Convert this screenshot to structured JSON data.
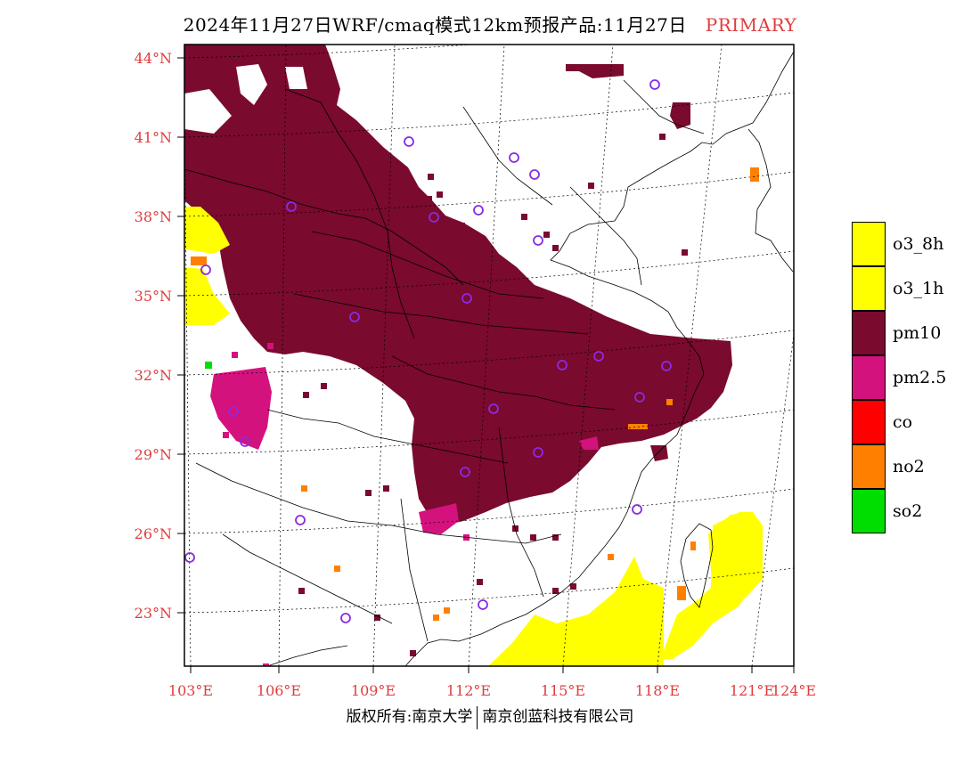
{
  "header": {
    "title": "2024年11月27日WRF/cmaq模式12km预报产品:11月27日",
    "tag": "PRIMARY"
  },
  "map": {
    "lat_labels": [
      "44°N",
      "41°N",
      "38°N",
      "35°N",
      "32°N",
      "29°N",
      "26°N",
      "23°N"
    ],
    "lon_labels": [
      "103°E",
      "106°E",
      "109°E",
      "112°E",
      "115°E",
      "118°E",
      "121°E",
      "124°E"
    ],
    "colors": {
      "pm10": "#7a0a2e",
      "pm25": "#d4127e",
      "o3": "#ffff00",
      "no2": "#ff8000",
      "so2": "#00dd00",
      "co": "#ff0000",
      "grid_label": "#e03c3c",
      "station": "#8a2be2"
    }
  },
  "legend": [
    {
      "label": "o3_8h",
      "color": "#ffff00"
    },
    {
      "label": "o3_1h",
      "color": "#ffff00"
    },
    {
      "label": "pm10",
      "color": "#7a0a2e"
    },
    {
      "label": "pm2.5",
      "color": "#d4127e"
    },
    {
      "label": "co",
      "color": "#ff0000"
    },
    {
      "label": "no2",
      "color": "#ff8000"
    },
    {
      "label": "so2",
      "color": "#00dd00"
    }
  ],
  "footer": {
    "left": "版权所有:南京大学",
    "right": "南京创蓝科技有限公司"
  }
}
